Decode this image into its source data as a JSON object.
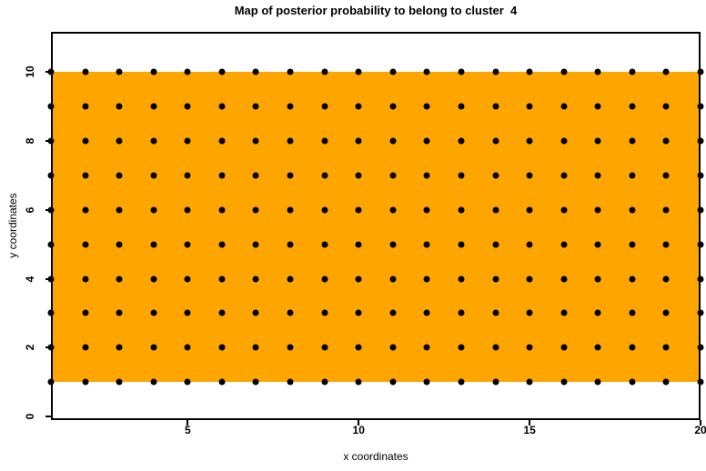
{
  "title": "Map of posterior probability to belong to cluster  4",
  "chart_data": {
    "type": "heatmap",
    "title": "Map of posterior probability to belong to cluster  4",
    "xlabel": "x coordinates",
    "ylabel": "y coordinates",
    "x_ticks": [
      5,
      10,
      15,
      20
    ],
    "y_ticks": [
      0,
      2,
      4,
      6,
      8,
      10
    ],
    "xlim": [
      1,
      20
    ],
    "ylim": [
      -0.1,
      11.16
    ],
    "grid_on": false,
    "legend": "none",
    "probability_region": {
      "x_min": 1,
      "x_max": 20,
      "y_min": 1,
      "y_max": 10,
      "fill": "#FFA500"
    },
    "grid_points": {
      "x_start": 1,
      "x_end": 20,
      "x_step": 1,
      "y_start": 1,
      "y_end": 10,
      "y_step": 1,
      "marker": "filled-circle",
      "color": "#000000"
    }
  },
  "colors": {
    "background": "#FFFFFF",
    "region_fill": "#FFA500",
    "point": "#000000",
    "axis": "#000000",
    "text": "#000000"
  }
}
